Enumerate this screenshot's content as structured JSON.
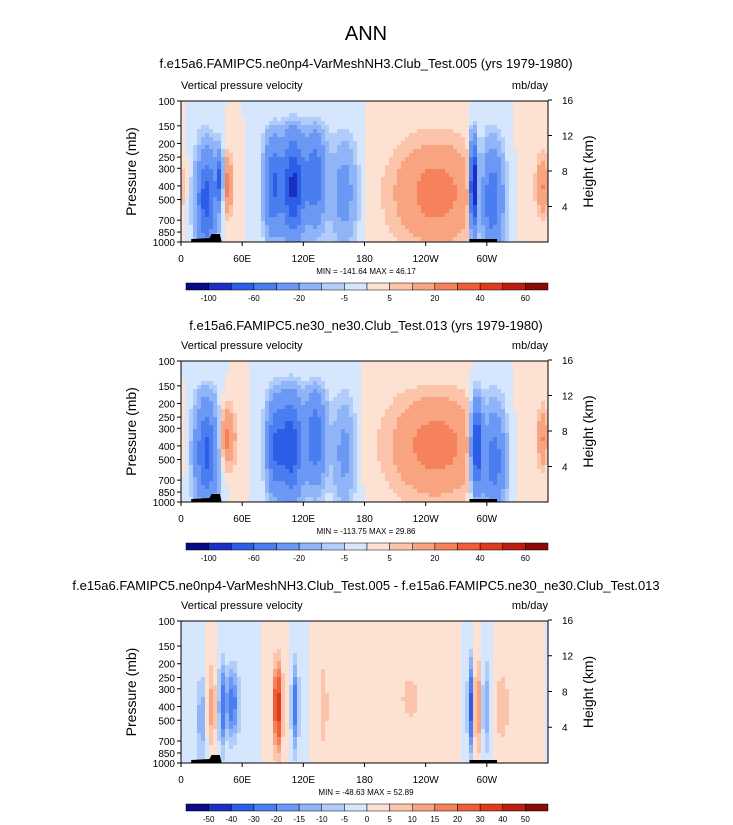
{
  "page_title": "ANN",
  "chart_data": [
    {
      "type": "heatmap",
      "title": "f.e15a6.FAMIPC5.ne0np4-VarMeshNH3.Club_Test.005 (yrs 1979-1980)",
      "variable": "Vertical pressure velocity",
      "units": "mb/day",
      "ylabel": "Pressure (mb)",
      "ylabel_right": "Height (km)",
      "pressure_ticks": [
        "100",
        "150",
        "200",
        "250",
        "300",
        "400",
        "500",
        "700",
        "850",
        "1000"
      ],
      "height_ticks": [
        "16",
        "12",
        "8",
        "4"
      ],
      "lon_ticks": [
        "0",
        "60E",
        "120E",
        "180",
        "120W",
        "60W"
      ],
      "stats": "MIN = -141.64  MAX =  46.17",
      "colorbar_labels": [
        "-100",
        "-60",
        "-20",
        "-5",
        "5",
        "20",
        "40",
        "60"
      ],
      "colorbar_colors": [
        "#0a0a86",
        "#1c2fc4",
        "#2b5de6",
        "#4a7df0",
        "#6b98f5",
        "#8fb4f8",
        "#b2cdfa",
        "#d6e6fc",
        "#fde2d4",
        "#fcc4aa",
        "#f9a480",
        "#f5825a",
        "#ef5e36",
        "#de3a1e",
        "#bb1e10",
        "#8a0a06"
      ],
      "features": [
        {
          "lon": 25,
          "p": 500,
          "w": 7,
          "dp": 0.55,
          "v": -70
        },
        {
          "lon": 38,
          "p": 350,
          "w": 2.5,
          "dp": 0.3,
          "v": -60
        },
        {
          "lon": 45,
          "p": 400,
          "w": 4,
          "dp": 0.35,
          "v": 25
        },
        {
          "lon": 90,
          "p": 400,
          "w": 6,
          "dp": 0.55,
          "v": -60
        },
        {
          "lon": 110,
          "p": 400,
          "w": 8,
          "dp": 0.6,
          "v": -85
        },
        {
          "lon": 132,
          "p": 350,
          "w": 7,
          "dp": 0.55,
          "v": -55
        },
        {
          "lon": 160,
          "p": 450,
          "w": 9,
          "dp": 0.6,
          "v": -28
        },
        {
          "lon": 250,
          "p": 450,
          "w": 30,
          "dp": 0.6,
          "v": 25
        },
        {
          "lon": 287,
          "p": 400,
          "w": 2.5,
          "dp": 0.5,
          "v": -120
        },
        {
          "lon": 305,
          "p": 500,
          "w": 8,
          "dp": 0.6,
          "v": -60
        },
        {
          "lon": 355,
          "p": 400,
          "w": 5,
          "dp": 0.35,
          "v": 20
        }
      ]
    },
    {
      "type": "heatmap",
      "title": "f.e15a6.FAMIPC5.ne30_ne30.Club_Test.013 (yrs 1979-1980)",
      "variable": "Vertical pressure velocity",
      "units": "mb/day",
      "ylabel": "Pressure (mb)",
      "ylabel_right": "Height (km)",
      "pressure_ticks": [
        "100",
        "150",
        "200",
        "250",
        "300",
        "400",
        "500",
        "700",
        "850",
        "1000"
      ],
      "height_ticks": [
        "16",
        "12",
        "8",
        "4"
      ],
      "lon_ticks": [
        "0",
        "60E",
        "120E",
        "180",
        "120W",
        "60W"
      ],
      "stats": "MIN = -113.75  MAX =  29.86",
      "colorbar_labels": [
        "-100",
        "-60",
        "-20",
        "-5",
        "5",
        "20",
        "40",
        "60"
      ],
      "colorbar_colors": [
        "#0a0a86",
        "#1c2fc4",
        "#2b5de6",
        "#4a7df0",
        "#6b98f5",
        "#8fb4f8",
        "#b2cdfa",
        "#d6e6fc",
        "#fde2d4",
        "#fcc4aa",
        "#f9a480",
        "#f5825a",
        "#ef5e36",
        "#de3a1e",
        "#bb1e10",
        "#8a0a06"
      ],
      "features": [
        {
          "lon": 25,
          "p": 450,
          "w": 8,
          "dp": 0.6,
          "v": -65
        },
        {
          "lon": 45,
          "p": 350,
          "w": 6,
          "dp": 0.35,
          "v": 25
        },
        {
          "lon": 92,
          "p": 400,
          "w": 6,
          "dp": 0.55,
          "v": -55
        },
        {
          "lon": 108,
          "p": 400,
          "w": 8,
          "dp": 0.6,
          "v": -75
        },
        {
          "lon": 132,
          "p": 350,
          "w": 7,
          "dp": 0.55,
          "v": -55
        },
        {
          "lon": 160,
          "p": 450,
          "w": 8,
          "dp": 0.6,
          "v": -25
        },
        {
          "lon": 250,
          "p": 400,
          "w": 32,
          "dp": 0.6,
          "v": 25
        },
        {
          "lon": 290,
          "p": 400,
          "w": 4,
          "dp": 0.5,
          "v": -90
        },
        {
          "lon": 307,
          "p": 500,
          "w": 8,
          "dp": 0.6,
          "v": -55
        },
        {
          "lon": 355,
          "p": 350,
          "w": 4,
          "dp": 0.35,
          "v": 20
        }
      ]
    },
    {
      "type": "heatmap",
      "title": "f.e15a6.FAMIPC5.ne0np4-VarMeshNH3.Club_Test.005 - f.e15a6.FAMIPC5.ne30_ne30.Club_Test.013",
      "variable": "Vertical pressure velocity",
      "units": "mb/day",
      "ylabel": "Pressure (mb)",
      "ylabel_right": "Height (km)",
      "pressure_ticks": [
        "100",
        "150",
        "200",
        "250",
        "300",
        "400",
        "500",
        "700",
        "850",
        "1000"
      ],
      "height_ticks": [
        "16",
        "12",
        "8",
        "4"
      ],
      "lon_ticks": [
        "0",
        "60E",
        "120E",
        "180",
        "120W",
        "60W"
      ],
      "stats": "MIN = -48.63  MAX =  52.89",
      "colorbar_labels": [
        "-50",
        "-40",
        "-30",
        "-20",
        "-15",
        "-10",
        "-5",
        "0",
        "5",
        "10",
        "15",
        "20",
        "30",
        "40",
        "50"
      ],
      "colorbar_colors": [
        "#0a0a86",
        "#1c2fc4",
        "#2b5de6",
        "#4a7df0",
        "#6b98f5",
        "#8fb4f8",
        "#b2cdfa",
        "#d6e6fc",
        "#fde2d4",
        "#fcc4aa",
        "#f9a480",
        "#f5825a",
        "#ef5e36",
        "#de3a1e",
        "#bb1e10",
        "#8a0a06"
      ],
      "features": [
        {
          "lon": 20,
          "p": 500,
          "w": 3,
          "dp": 0.5,
          "v": -15
        },
        {
          "lon": 30,
          "p": 400,
          "w": 3,
          "dp": 0.5,
          "v": 12
        },
        {
          "lon": 40,
          "p": 400,
          "w": 2,
          "dp": 0.5,
          "v": -25
        },
        {
          "lon": 50,
          "p": 380,
          "w": 5,
          "dp": 0.4,
          "v": -25
        },
        {
          "lon": 95,
          "p": 400,
          "w": 3,
          "dp": 0.5,
          "v": 35
        },
        {
          "lon": 112,
          "p": 400,
          "w": 2.5,
          "dp": 0.5,
          "v": -25
        },
        {
          "lon": 140,
          "p": 400,
          "w": 3,
          "dp": 0.5,
          "v": 10
        },
        {
          "lon": 225,
          "p": 350,
          "w": 12,
          "dp": 0.5,
          "v": 6
        },
        {
          "lon": 285,
          "p": 400,
          "w": 2.5,
          "dp": 0.5,
          "v": -35
        },
        {
          "lon": 290,
          "p": 400,
          "w": 2,
          "dp": 0.5,
          "v": 30
        },
        {
          "lon": 300,
          "p": 400,
          "w": 3,
          "dp": 0.5,
          "v": -15
        },
        {
          "lon": 315,
          "p": 400,
          "w": 6,
          "dp": 0.5,
          "v": 8
        }
      ]
    }
  ]
}
